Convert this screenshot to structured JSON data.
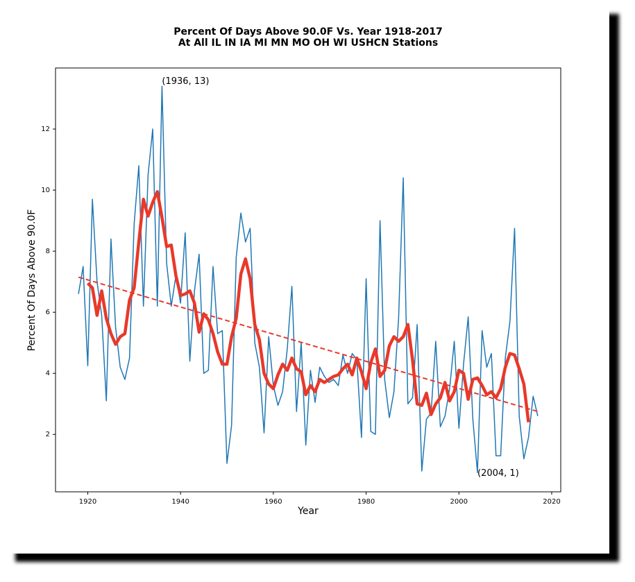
{
  "chart_data": {
    "type": "line",
    "title": [
      "Percent Of Days Above 90.0F Vs. Year 1918-2017",
      "At All IL IN IA MI MN MO OH WI USHCN Stations"
    ],
    "x_label": "Year",
    "y_label": "Percent Of Days Above 90.0F",
    "xlim": [
      1913.05,
      2021.95
    ],
    "ylim": [
      0.12,
      14.0
    ],
    "xticks": [
      1920,
      1940,
      1960,
      1980,
      2000,
      2020
    ],
    "yticks": [
      2,
      4,
      6,
      8,
      10,
      12
    ],
    "series": [
      {
        "color": "#1f77b4",
        "linewidth": 1.5,
        "linestyle": "solid",
        "x": [
          1918,
          1919,
          1920,
          1921,
          1922,
          1923,
          1924,
          1925,
          1926,
          1927,
          1928,
          1929,
          1930,
          1931,
          1932,
          1933,
          1934,
          1935,
          1936,
          1937,
          1938,
          1939,
          1940,
          1941,
          1942,
          1943,
          1944,
          1945,
          1946,
          1947,
          1948,
          1949,
          1950,
          1951,
          1952,
          1953,
          1954,
          1955,
          1956,
          1957,
          1958,
          1959,
          1960,
          1961,
          1962,
          1963,
          1964,
          1965,
          1966,
          1967,
          1968,
          1969,
          1970,
          1971,
          1972,
          1973,
          1974,
          1975,
          1976,
          1977,
          1978,
          1979,
          1980,
          1981,
          1982,
          1983,
          1984,
          1985,
          1986,
          1987,
          1988,
          1989,
          1990,
          1991,
          1992,
          1993,
          1994,
          1995,
          1996,
          1997,
          1998,
          1999,
          2000,
          2001,
          2002,
          2003,
          2004,
          2005,
          2006,
          2007,
          2008,
          2009,
          2010,
          2011,
          2012,
          2013,
          2014,
          2015,
          2016,
          2017
        ],
        "values": [
          6.6,
          7.5,
          4.25,
          9.7,
          7.0,
          5.9,
          3.1,
          8.4,
          5.5,
          4.2,
          3.8,
          4.5,
          8.9,
          10.8,
          6.2,
          10.5,
          12.0,
          6.2,
          13.4,
          7.6,
          6.2,
          7.2,
          6.3,
          8.6,
          4.4,
          6.7,
          7.9,
          4.0,
          4.1,
          7.5,
          5.3,
          5.4,
          1.05,
          2.3,
          7.8,
          9.25,
          8.3,
          8.75,
          5.0,
          4.2,
          2.05,
          5.2,
          3.6,
          2.95,
          3.4,
          4.8,
          6.85,
          2.75,
          5.0,
          1.65,
          4.1,
          3.05,
          4.2,
          3.9,
          3.7,
          3.8,
          3.6,
          4.6,
          4.0,
          4.65,
          4.45,
          1.9,
          7.1,
          2.1,
          2.0,
          9.0,
          3.8,
          2.55,
          3.4,
          5.8,
          10.4,
          3.0,
          3.2,
          5.6,
          0.8,
          2.5,
          2.7,
          5.05,
          2.25,
          2.6,
          3.5,
          5.05,
          2.2,
          4.3,
          5.85,
          2.5,
          0.75,
          5.4,
          4.2,
          4.65,
          1.3,
          1.3,
          4.5,
          5.7,
          8.75,
          2.6,
          1.2,
          1.9,
          3.25,
          2.6
        ]
      },
      {
        "color": "#e8392a",
        "linewidth": 4.5,
        "linestyle": "solid",
        "x": [
          1920,
          1921,
          1922,
          1923,
          1924,
          1925,
          1926,
          1927,
          1928,
          1929,
          1930,
          1931,
          1932,
          1933,
          1934,
          1935,
          1936,
          1937,
          1938,
          1939,
          1940,
          1941,
          1942,
          1943,
          1944,
          1945,
          1946,
          1947,
          1948,
          1949,
          1950,
          1951,
          1952,
          1953,
          1954,
          1955,
          1956,
          1957,
          1958,
          1959,
          1960,
          1961,
          1962,
          1963,
          1964,
          1965,
          1966,
          1967,
          1968,
          1969,
          1970,
          1971,
          1972,
          1973,
          1974,
          1975,
          1976,
          1977,
          1978,
          1979,
          1980,
          1981,
          1982,
          1983,
          1984,
          1985,
          1986,
          1987,
          1988,
          1989,
          1990,
          1991,
          1992,
          1993,
          1994,
          1995,
          1996,
          1997,
          1998,
          1999,
          2000,
          2001,
          2002,
          2003,
          2004,
          2005,
          2006,
          2007,
          2008,
          2009,
          2010,
          2011,
          2012,
          2013,
          2014,
          2015
        ],
        "values": [
          6.95,
          6.8,
          5.9,
          6.7,
          5.8,
          5.3,
          4.95,
          5.2,
          5.3,
          6.4,
          6.8,
          8.3,
          9.7,
          9.15,
          9.6,
          9.95,
          9.1,
          8.15,
          8.2,
          7.2,
          6.55,
          6.6,
          6.7,
          6.3,
          5.35,
          5.95,
          5.75,
          5.3,
          4.7,
          4.3,
          4.3,
          5.2,
          5.8,
          7.25,
          7.75,
          7.1,
          5.6,
          5.1,
          4.0,
          3.65,
          3.5,
          3.95,
          4.3,
          4.1,
          4.5,
          4.15,
          4.05,
          3.3,
          3.6,
          3.4,
          3.8,
          3.7,
          3.8,
          3.9,
          3.95,
          4.15,
          4.3,
          3.95,
          4.5,
          4.05,
          3.5,
          4.35,
          4.8,
          3.9,
          4.1,
          4.9,
          5.2,
          5.05,
          5.2,
          5.6,
          4.45,
          3.0,
          2.95,
          3.35,
          2.65,
          3.0,
          3.2,
          3.7,
          3.1,
          3.4,
          4.1,
          4.0,
          3.15,
          3.8,
          3.85,
          3.6,
          3.3,
          3.4,
          3.2,
          3.5,
          4.2,
          4.65,
          4.6,
          4.15,
          3.65,
          2.4
        ]
      },
      {
        "color": "#e8392a",
        "linewidth": 2,
        "linestyle": "dashed",
        "x": [
          1918,
          2017
        ],
        "values": [
          7.15,
          2.75
        ]
      }
    ],
    "annotations": [
      {
        "text": "(1936, 13)",
        "x": 1936,
        "y": 13.4
      },
      {
        "text": "(2004, 1)",
        "x": 2004,
        "y": 0.75
      }
    ]
  }
}
